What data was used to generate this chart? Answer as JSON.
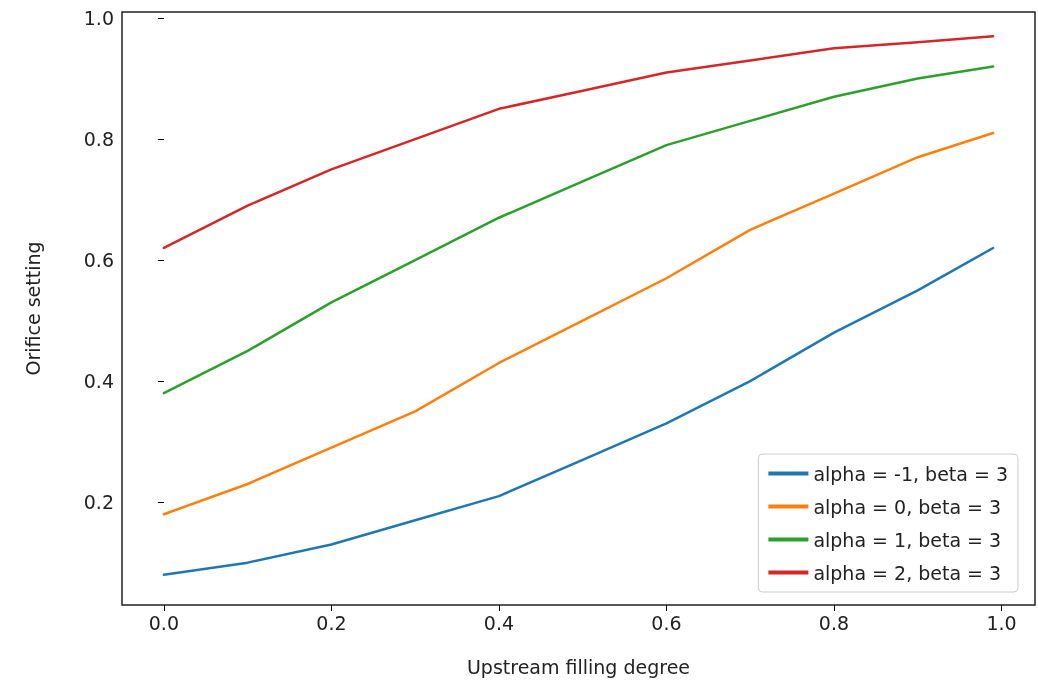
{
  "chart_data": {
    "type": "line",
    "xlabel": "Upstream filling degree",
    "ylabel": "Orifice setting",
    "x": [
      0,
      0.1,
      0.2,
      0.3,
      0.4,
      0.5,
      0.6,
      0.7,
      0.8,
      0.9,
      0.99
    ],
    "series": [
      {
        "name": "alpha = -1, beta = 3",
        "color": "#1f77b4",
        "values": [
          0.08,
          0.1,
          0.13,
          0.17,
          0.21,
          0.27,
          0.33,
          0.4,
          0.48,
          0.55,
          0.62
        ]
      },
      {
        "name": "alpha = 0, beta = 3",
        "color": "#ff7f0e",
        "values": [
          0.18,
          0.23,
          0.29,
          0.35,
          0.43,
          0.5,
          0.57,
          0.65,
          0.71,
          0.77,
          0.81
        ]
      },
      {
        "name": "alpha = 1, beta = 3",
        "color": "#2ca02c",
        "values": [
          0.38,
          0.45,
          0.53,
          0.6,
          0.67,
          0.73,
          0.79,
          0.83,
          0.87,
          0.9,
          0.92
        ]
      },
      {
        "name": "alpha = 2, beta = 3",
        "color": "#d62728",
        "values": [
          0.62,
          0.69,
          0.75,
          0.8,
          0.85,
          0.88,
          0.91,
          0.93,
          0.95,
          0.96,
          0.97
        ]
      }
    ],
    "xlim": [
      -0.05,
      1.04
    ],
    "ylim": [
      0.03,
      1.01
    ],
    "xticks": [
      {
        "value": 0,
        "label": "0.0"
      },
      {
        "value": 0.2,
        "label": "0.2"
      },
      {
        "value": 0.4,
        "label": "0.4"
      },
      {
        "value": 0.6,
        "label": "0.6"
      },
      {
        "value": 0.8,
        "label": "0.8"
      },
      {
        "value": 1,
        "label": "1.0"
      }
    ],
    "yticks": [
      0.2,
      0.4,
      0.6,
      0.8,
      {
        "value": 1,
        "label": "1.0"
      }
    ],
    "grid": false,
    "legend": "bottom right",
    "marker": "none",
    "line_style": "solid"
  }
}
